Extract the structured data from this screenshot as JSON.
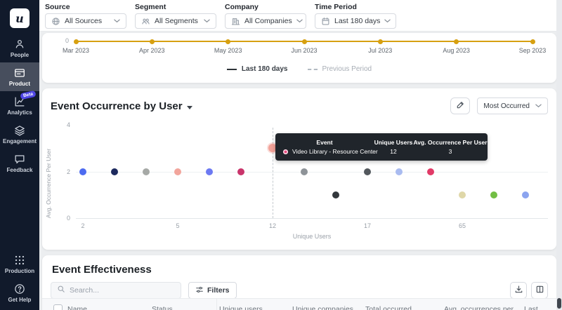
{
  "app": {
    "logo_letter": "u"
  },
  "sidebar": {
    "badge_color": "#4f46e5",
    "items": [
      {
        "id": "people",
        "label": "People",
        "icon": "people-icon",
        "active": false
      },
      {
        "id": "product",
        "label": "Product",
        "icon": "product-icon",
        "active": true
      },
      {
        "id": "analytics",
        "label": "Analytics",
        "icon": "analytics-icon",
        "active": false,
        "badge": "Beta"
      },
      {
        "id": "engagement",
        "label": "Engagement",
        "icon": "engagement-icon",
        "active": false
      },
      {
        "id": "feedback",
        "label": "Feedback",
        "icon": "feedback-icon",
        "active": false
      }
    ],
    "footer_items": [
      {
        "id": "production",
        "label": "Production",
        "icon": "production-icon"
      },
      {
        "id": "get-help",
        "label": "Get Help",
        "icon": "help-icon"
      }
    ]
  },
  "filter_bar": {
    "filters": [
      {
        "id": "source",
        "label": "Source",
        "value": "All Sources",
        "icon": "globe-icon"
      },
      {
        "id": "segment",
        "label": "Segment",
        "value": "All Segments",
        "icon": "segment-icon"
      },
      {
        "id": "company",
        "label": "Company",
        "value": "All Companies",
        "icon": "company-icon"
      },
      {
        "id": "time-period",
        "label": "Time Period",
        "value": "Last 180 days",
        "icon": "calendar-icon"
      }
    ]
  },
  "timeline_card": {
    "y_tick": "0",
    "line_color": "#D7A011",
    "months": [
      "Mar 2023",
      "Apr 2023",
      "May 2023",
      "Jun 2023",
      "Jul 2023",
      "Aug 2023",
      "Sep 2023"
    ],
    "legend": [
      {
        "label": "Last 180 days",
        "style": "solid"
      },
      {
        "label": "Previous Period",
        "style": "dashed"
      }
    ]
  },
  "occurrence_card": {
    "title": "Event Occurrence by User",
    "sort_value": "Most Occurred"
  },
  "tooltip": {
    "headers": [
      "Event",
      "Unique Users",
      "Avg. Occurrence Per User"
    ],
    "event": "Video Library - Resource Center",
    "unique_users": "12",
    "avg_occurrence": "3",
    "marker_color": "#E8487C"
  },
  "chart_data": {
    "type": "scatter",
    "title": "Event Occurrence by User",
    "xlabel": "Unique Users",
    "ylabel": "Avg. Occurrence Per User",
    "ylim": [
      0,
      4
    ],
    "yticks": [
      "0",
      "2",
      "4"
    ],
    "grid": "horizontal",
    "x_tick_labels": [
      {
        "slot": 0,
        "label": "2"
      },
      {
        "slot": 3,
        "label": "5"
      },
      {
        "slot": 6,
        "label": "12"
      },
      {
        "slot": 9,
        "label": "17"
      },
      {
        "slot": 12,
        "label": "65"
      }
    ],
    "points": [
      {
        "slot": 0,
        "y": 2,
        "color": "#4D6BF0"
      },
      {
        "slot": 1,
        "y": 2,
        "color": "#1D2A5E"
      },
      {
        "slot": 2,
        "y": 2,
        "color": "#A6A9A6"
      },
      {
        "slot": 3,
        "y": 2,
        "color": "#F2A59C"
      },
      {
        "slot": 4,
        "y": 2,
        "color": "#6C79F2"
      },
      {
        "slot": 5,
        "y": 2,
        "color": "#C9346B"
      },
      {
        "slot": 6,
        "y": 3,
        "color": "#F2A198",
        "highlighted": true
      },
      {
        "slot": 7,
        "y": 2,
        "color": "#8E9398"
      },
      {
        "slot": 8,
        "y": 1,
        "color": "#33383C"
      },
      {
        "slot": 9,
        "y": 2,
        "color": "#53585D"
      },
      {
        "slot": 10,
        "y": 2,
        "color": "#A9BBF0"
      },
      {
        "slot": 11,
        "y": 2,
        "color": "#E13A67"
      },
      {
        "slot": 12,
        "y": 1,
        "color": "#DFD7A8"
      },
      {
        "slot": 13,
        "y": 1,
        "color": "#72BE44"
      },
      {
        "slot": 14,
        "y": 1,
        "color": "#8BA4EF"
      }
    ],
    "hovered_point": {
      "slot": 6,
      "event": "Video Library - Resource Center",
      "unique_users": 12,
      "avg_occurrence_per_user": 3
    }
  },
  "effectiveness_card": {
    "title": "Event Effectiveness",
    "search_placeholder": "Search...",
    "filters_button": "Filters",
    "table_headers": [
      "Name",
      "Status",
      "Unique users",
      "Unique companies",
      "Total occurred",
      "Avg. occurrences per ...",
      "Last"
    ]
  }
}
